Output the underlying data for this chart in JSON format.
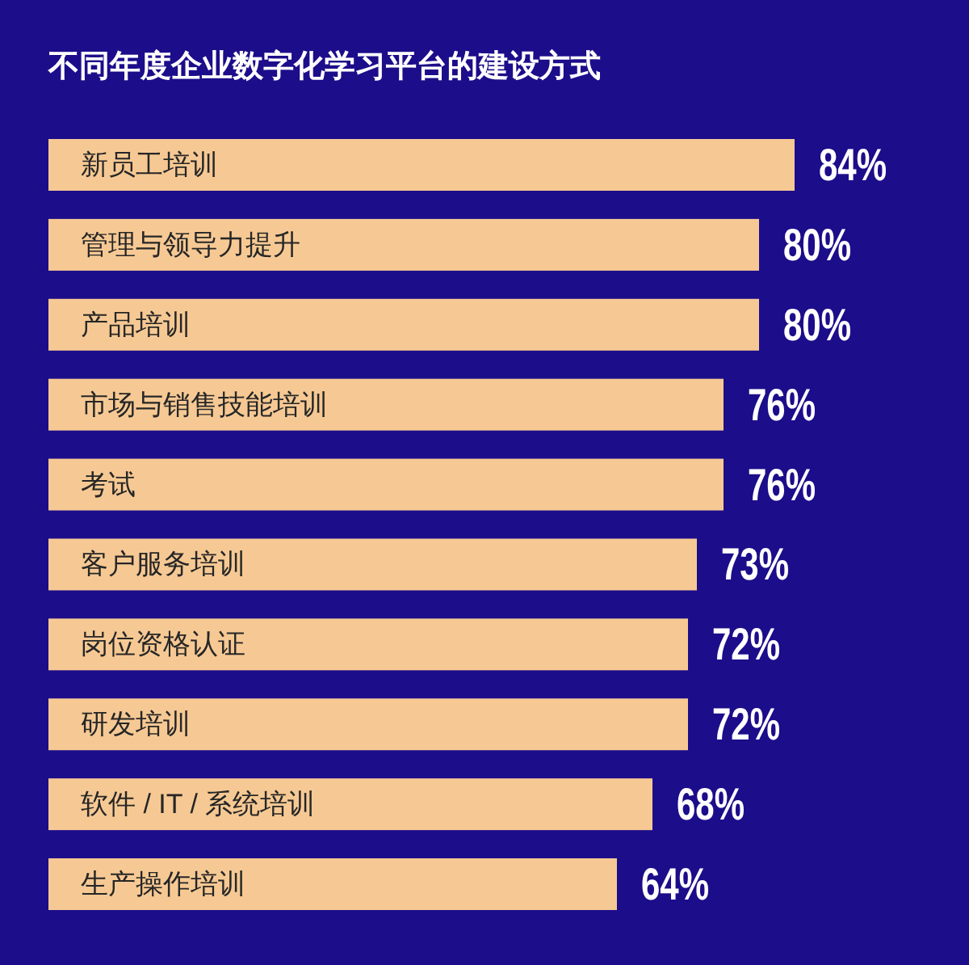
{
  "chart_data": {
    "type": "bar",
    "orientation": "horizontal",
    "title": "不同年度企业数字化学习平台的建设方式",
    "categories": [
      "新员工培训",
      "管理与领导力提升",
      "产品培训",
      "市场与销售技能培训",
      "考试",
      "客户服务培训",
      "岗位资格认证",
      "研发培训",
      "软件 / IT / 系统培训",
      "生产操作培训"
    ],
    "values": [
      84,
      80,
      80,
      76,
      76,
      73,
      72,
      72,
      68,
      64
    ],
    "value_labels": [
      "84%",
      "80%",
      "80%",
      "76%",
      "76%",
      "73%",
      "72%",
      "72%",
      "68%",
      "64%"
    ],
    "color": "#f6c994"
  }
}
